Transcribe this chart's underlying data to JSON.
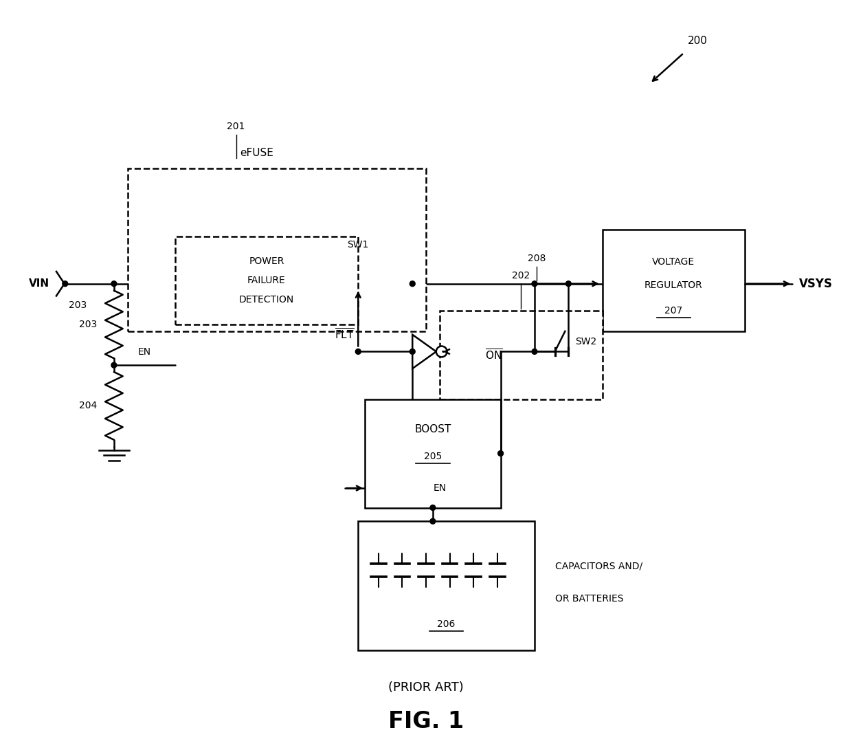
{
  "bg_color": "#ffffff",
  "lc": "#000000",
  "lw": 1.8,
  "labels": {
    "vin": "VIN",
    "vsys": "VSYS",
    "efuse": "eFUSE",
    "sw1": "SW1",
    "sw2": "SW2",
    "en": "EN",
    "en2": "EN",
    "boost": "BOOST",
    "boost_num": "205",
    "voltage_reg_line1": "VOLTAGE",
    "voltage_reg_line2": "REGULATOR",
    "voltage_reg_num": "207",
    "cap_line1": "CAPACITORS AND/",
    "cap_line2": "OR BATTERIES",
    "cap_num": "206",
    "power_fail_line1": "POWER",
    "power_fail_line2": "FAILURE",
    "power_fail_line3": "DETECTION",
    "num_200": "200",
    "num_201": "201",
    "num_202": "202",
    "num_203a": "203",
    "num_203b": "203",
    "num_204": "204",
    "num_208": "208",
    "prior_art": "(PRIOR ART)",
    "fig_title": "FIG. 1"
  }
}
